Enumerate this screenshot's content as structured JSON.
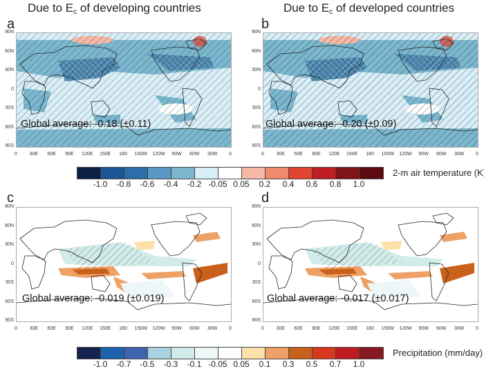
{
  "columns": [
    {
      "title_prefix": "Due to E",
      "title_sub": "c",
      "title_suffix": " of developing countries"
    },
    {
      "title_prefix": "Due to E",
      "title_sub": "c",
      "title_suffix": " of developed countries"
    }
  ],
  "panels": [
    {
      "letter": "a",
      "variable": "2-m air temperature",
      "global_average_text": "Global average: -0.18 (±0.11)",
      "global_average": -0.18,
      "uncertainty": 0.11
    },
    {
      "letter": "b",
      "variable": "2-m air temperature",
      "global_average_text": "Global average: -0.20 (±0.09)",
      "global_average": -0.2,
      "uncertainty": 0.09
    },
    {
      "letter": "c",
      "variable": "Precipitation",
      "global_average_text": "Global average: -0.019 (±0.019)",
      "global_average": -0.019,
      "uncertainty": 0.019
    },
    {
      "letter": "d",
      "variable": "Precipitation",
      "global_average_text": "Global average: -0.017 (±0.017)",
      "global_average": -0.017,
      "uncertainty": 0.017
    }
  ],
  "axes": {
    "lat_ticks": [
      "90N",
      "60N",
      "30N",
      "0",
      "30S",
      "60S",
      "90S"
    ],
    "lon_ticks": [
      "0",
      "30E",
      "60E",
      "90E",
      "120E",
      "150E",
      "180",
      "150W",
      "120W",
      "90W",
      "60W",
      "30W",
      "0"
    ]
  },
  "colorbars": [
    {
      "label": "2-m air temperature (K)",
      "ticks": [
        "-1.0",
        "-0.8",
        "-0.6",
        "-0.4",
        "-0.2",
        "-0.05",
        "0.05",
        "0.2",
        "0.4",
        "0.6",
        "0.8",
        "1.0"
      ],
      "colors": [
        "#0d1f45",
        "#1b5593",
        "#2b6ea9",
        "#5a99c4",
        "#7bb8d0",
        "#d9eff8",
        "#ffffff",
        "#f6b9a6",
        "#ef8a6c",
        "#e2442f",
        "#c01e24",
        "#7e1419",
        "#5c0a10"
      ]
    },
    {
      "label": "Precipitation (mm/day)",
      "ticks": [
        "-1.0",
        "-0.7",
        "-0.5",
        "-0.3",
        "-0.1",
        "-0.05",
        "0.05",
        "0.1",
        "0.3",
        "0.5",
        "0.7",
        "1.0"
      ],
      "colors": [
        "#15234f",
        "#1d62ad",
        "#3f63ad",
        "#a9d3e1",
        "#d1ecea",
        "#eef7f7",
        "#ffffff",
        "#fddfa8",
        "#eea166",
        "#c9611c",
        "#d9381c",
        "#c01a22",
        "#861a20"
      ]
    }
  ],
  "chart_data": [
    {
      "type": "heatmap",
      "title": "a",
      "subtitle": "Due to Ec of developing countries",
      "variable": "2-m air temperature (K)",
      "annotation": "Global average: -0.18 (±0.11)"
    },
    {
      "type": "heatmap",
      "title": "b",
      "subtitle": "Due to Ec of developed countries",
      "variable": "2-m air temperature (K)",
      "annotation": "Global average: -0.20 (±0.09)"
    },
    {
      "type": "heatmap",
      "title": "c",
      "subtitle": "Due to Ec of developing countries",
      "variable": "Precipitation (mm/day)",
      "annotation": "Global average: -0.019 (±0.019)"
    },
    {
      "type": "heatmap",
      "title": "d",
      "subtitle": "Due to Ec of developed countries",
      "variable": "Precipitation (mm/day)",
      "annotation": "Global average: -0.017 (±0.017)"
    }
  ]
}
